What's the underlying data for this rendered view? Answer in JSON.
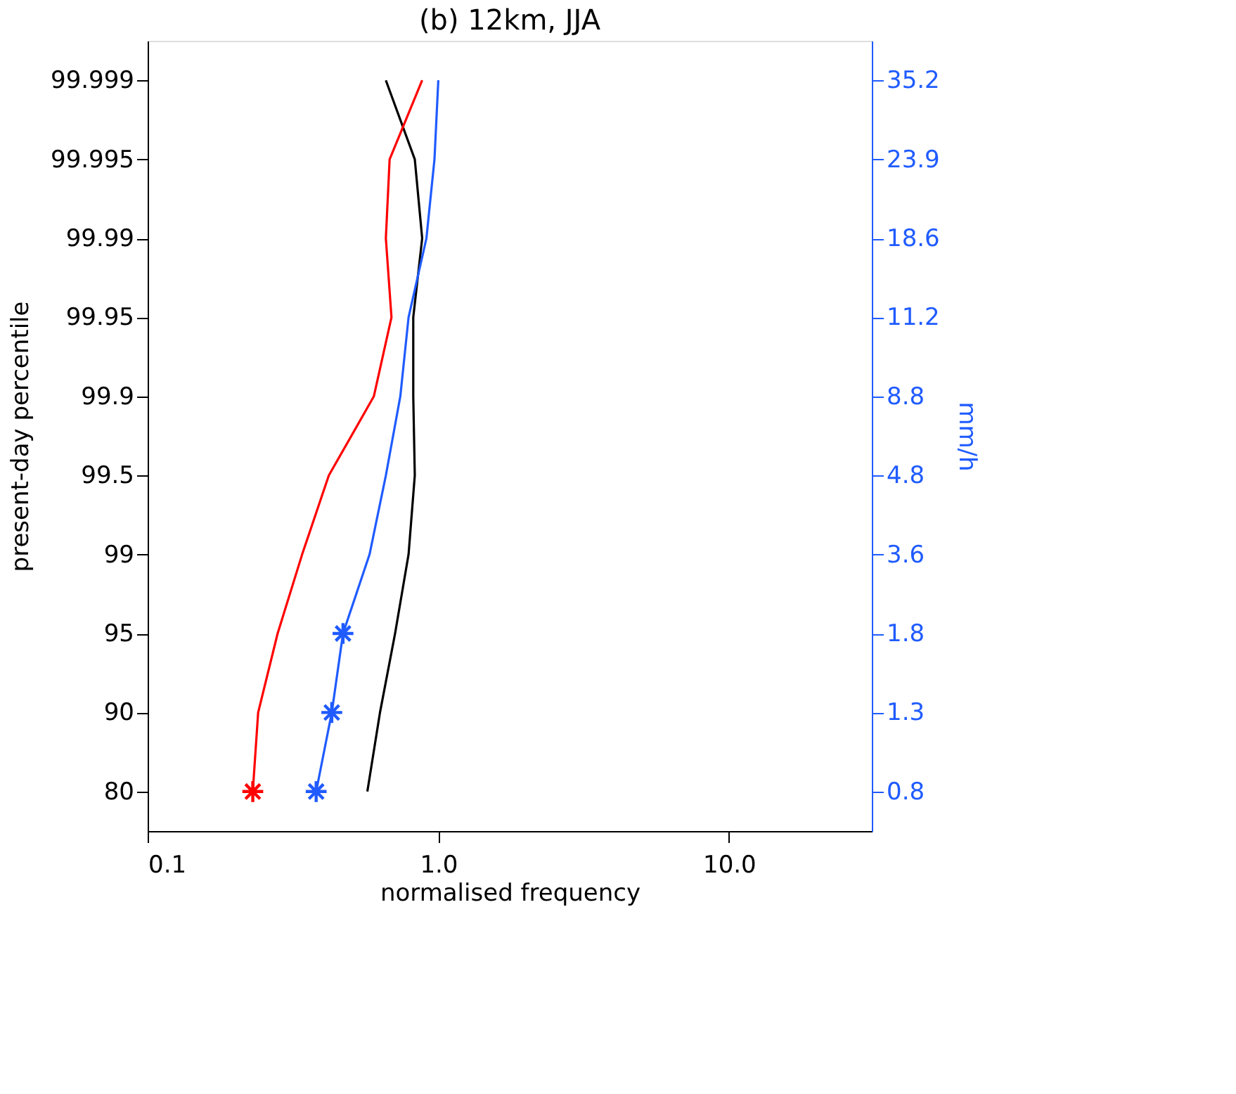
{
  "chart_data": {
    "type": "line",
    "title": "(b) 12km, JJA",
    "xlabel": "normalised frequency",
    "ylabel": "present-day percentile",
    "y2label": "mm/h",
    "orientation": "horizontal",
    "log": "x",
    "grid": false,
    "categories": [
      "99.999",
      "99.995",
      "99.99",
      "99.95",
      "99.9",
      "99.5",
      "99",
      "95",
      "90",
      "80"
    ],
    "y2_categories": [
      "35.2",
      "23.9",
      "18.6",
      "11.2",
      "8.8",
      "4.8",
      "3.6",
      "1.8",
      "1.3",
      "0.8"
    ],
    "xlim": [
      0.1,
      31
    ],
    "xticks": [
      {
        "value": 0.1,
        "label": "0.1"
      },
      {
        "value": 1,
        "label": "1.0"
      },
      {
        "value": 10,
        "label": "10.0"
      }
    ],
    "series": [
      {
        "color": "#000000",
        "values": [
          0.66,
          0.83,
          0.88,
          0.82,
          0.82,
          0.83,
          0.79,
          0.71,
          0.63,
          0.57
        ]
      },
      {
        "color": "#ff0000",
        "values": [
          0.88,
          0.68,
          0.66,
          0.69,
          0.6,
          0.42,
          0.34,
          0.28,
          0.24,
          0.23
        ]
      },
      {
        "color": "#1f5bff",
        "axis": "y2",
        "values": [
          1.0,
          0.97,
          0.91,
          0.79,
          0.74,
          0.66,
          0.58,
          0.47,
          0.43,
          0.38
        ]
      },
      {
        "type": "scatter",
        "marker": "cross",
        "color": "#ff0000",
        "values": [
          null,
          null,
          null,
          null,
          null,
          null,
          null,
          null,
          null,
          0.23
        ]
      },
      {
        "type": "scatter",
        "marker": "cross",
        "color": "#1f5bff",
        "values": [
          null,
          null,
          null,
          null,
          null,
          null,
          null,
          0.47,
          0.43,
          0.38
        ]
      }
    ]
  }
}
